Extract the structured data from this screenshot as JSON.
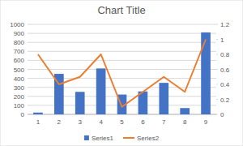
{
  "chart_data": {
    "type": "bar",
    "title": "Chart Title",
    "categories": [
      "1",
      "2",
      "3",
      "4",
      "5",
      "6",
      "7",
      "8",
      "9"
    ],
    "series": [
      {
        "name": "Series1",
        "type": "bar",
        "color": "#4472c4",
        "values": [
          20,
          450,
          250,
          510,
          220,
          255,
          350,
          70,
          910
        ]
      },
      {
        "name": "Series2",
        "type": "line",
        "axis": "y2",
        "color": "#ed7d31",
        "values": [
          0.8,
          0.4,
          0.5,
          0.8,
          0.1,
          0.3,
          0.5,
          0.3,
          1.0
        ]
      }
    ],
    "ylim": [
      0,
      1000
    ],
    "yticks": [
      0,
      100,
      200,
      300,
      400,
      500,
      600,
      700,
      800,
      900,
      1000
    ],
    "y2lim": [
      0,
      1.2
    ],
    "y2ticks": [
      0,
      0.2,
      0.4,
      0.6,
      0.8,
      1,
      1.2
    ],
    "grid": true,
    "legend": "bottom"
  }
}
